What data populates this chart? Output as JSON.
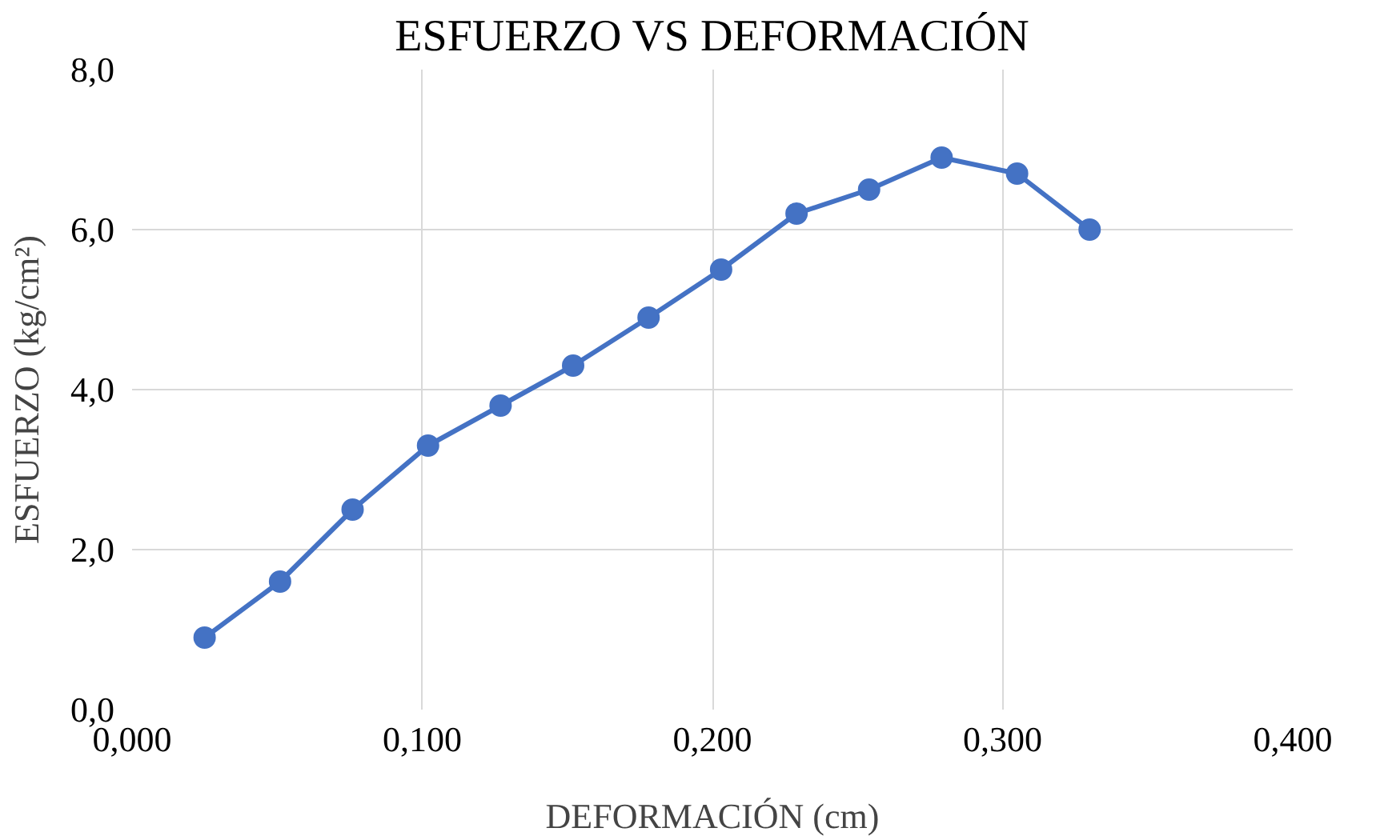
{
  "chart_data": {
    "type": "line",
    "title": "ESFUERZO VS DEFORMACIÓN",
    "xlabel": "DEFORMACIÓN (cm)",
    "ylabel": "ESFUERZO (kg/cm²)",
    "x": [
      0.025,
      0.051,
      0.076,
      0.102,
      0.127,
      0.152,
      0.178,
      0.203,
      0.229,
      0.254,
      0.279,
      0.305,
      0.33
    ],
    "series": [
      {
        "color": "#4472c4",
        "values": [
          0.9,
          1.6,
          2.5,
          3.3,
          3.8,
          4.3,
          4.9,
          5.5,
          6.2,
          6.5,
          6.9,
          6.7,
          6.0
        ]
      }
    ],
    "xlim": [
      0,
      0.4
    ],
    "xticks": [
      {
        "value": 0,
        "label": "0,000"
      },
      {
        "value": 0.1,
        "label": "0,100"
      },
      {
        "value": 0.2,
        "label": "0,200"
      },
      {
        "value": 0.3,
        "label": "0,300"
      },
      {
        "value": 0.4,
        "label": "0,400"
      }
    ],
    "ylim": [
      0,
      8
    ],
    "yticks": [
      {
        "value": 0,
        "label": "0,0"
      },
      {
        "value": 2,
        "label": "2,0"
      },
      {
        "value": 4,
        "label": "4,0"
      },
      {
        "value": 6,
        "label": "6,0"
      },
      {
        "value": 8,
        "label": "8,0"
      }
    ],
    "grid": true,
    "marker": "circle",
    "line_style": "solid"
  }
}
